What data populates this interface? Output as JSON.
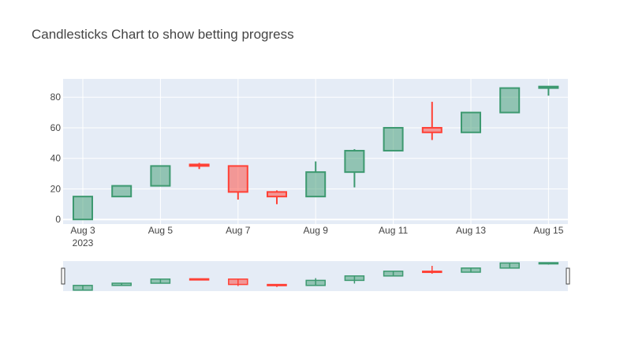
{
  "chart_data": {
    "type": "candlestick",
    "title": "Candlesticks Chart to show betting progress",
    "xlabel": "",
    "ylabel": "",
    "ylim": [
      -3,
      92
    ],
    "xaxis_year": "2023",
    "x_tick_labels": [
      "Aug 3",
      "Aug 5",
      "Aug 7",
      "Aug 9",
      "Aug 11",
      "Aug 13",
      "Aug 15"
    ],
    "y_tick_values": [
      0,
      20,
      40,
      60,
      80
    ],
    "increasing_color": "#3d9970",
    "decreasing_color": "#ff4136",
    "grid": true,
    "range_slider": true,
    "candles": [
      {
        "date": "Aug 3",
        "open": 0,
        "high": 15,
        "low": 0,
        "close": 15
      },
      {
        "date": "Aug 4",
        "open": 15,
        "high": 22,
        "low": 15,
        "close": 22
      },
      {
        "date": "Aug 5",
        "open": 22,
        "high": 35,
        "low": 22,
        "close": 35
      },
      {
        "date": "Aug 6",
        "open": 36,
        "high": 37,
        "low": 33,
        "close": 35
      },
      {
        "date": "Aug 7",
        "open": 35,
        "high": 35,
        "low": 13,
        "close": 18
      },
      {
        "date": "Aug 8",
        "open": 18,
        "high": 19,
        "low": 10,
        "close": 15
      },
      {
        "date": "Aug 9",
        "open": 15,
        "high": 38,
        "low": 15,
        "close": 31
      },
      {
        "date": "Aug 10",
        "open": 31,
        "high": 46,
        "low": 21,
        "close": 45
      },
      {
        "date": "Aug 11",
        "open": 45,
        "high": 60,
        "low": 45,
        "close": 60
      },
      {
        "date": "Aug 12",
        "open": 60,
        "high": 77,
        "low": 52,
        "close": 57
      },
      {
        "date": "Aug 13",
        "open": 57,
        "high": 70,
        "low": 57,
        "close": 70
      },
      {
        "date": "Aug 14",
        "open": 70,
        "high": 86,
        "low": 70,
        "close": 86
      },
      {
        "date": "Aug 15",
        "open": 86,
        "high": 87,
        "low": 81,
        "close": 87
      }
    ]
  }
}
